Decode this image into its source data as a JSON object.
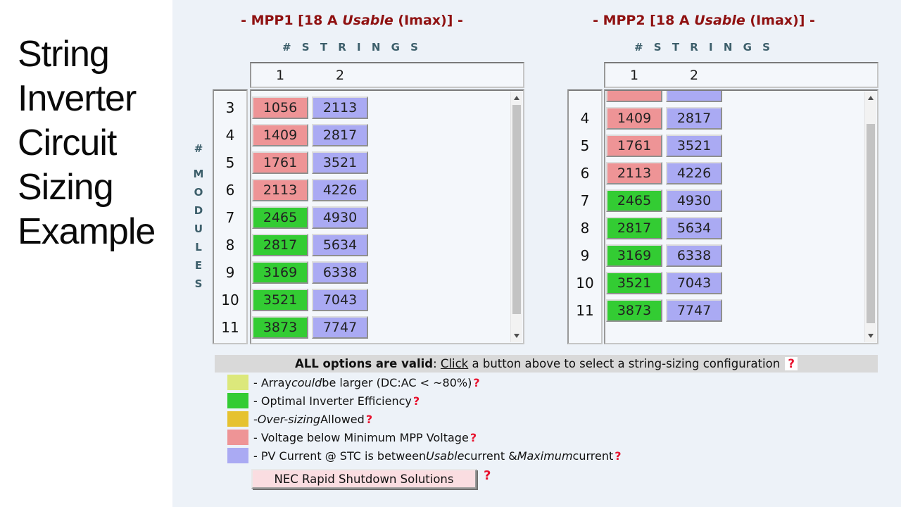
{
  "slide": {
    "title_lines": [
      "String",
      "Inverter",
      "Circuit",
      "Sizing",
      "Example"
    ]
  },
  "colors": {
    "pink": "#ee9496",
    "purple": "#aaaaf3",
    "green": "#33cc33",
    "yellow_green": "#dce87b",
    "gold": "#e6c22f",
    "dark_red": "#8f1111",
    "teal": "#3d5f6b",
    "help_red": "#e8112d",
    "bar_gray": "#d9d9d9",
    "nec_pink": "#fadde1"
  },
  "modules_axis": {
    "hash": "#",
    "letters": [
      "M",
      "O",
      "D",
      "U",
      "L",
      "E",
      "S"
    ]
  },
  "mpp1": {
    "title": [
      {
        "t": "- MPP1 [18 A "
      },
      {
        "t": "Usable",
        "i": true
      },
      {
        "t": " (Imax)] -"
      }
    ],
    "strings_label": "#  S T R I N G S",
    "col_headers": [
      "1",
      "2"
    ],
    "scrolled": false,
    "rows": [
      {
        "modules": "3",
        "cells": [
          {
            "v": "1056",
            "c": "pink"
          },
          {
            "v": "2113",
            "c": "purple"
          }
        ]
      },
      {
        "modules": "4",
        "cells": [
          {
            "v": "1409",
            "c": "pink"
          },
          {
            "v": "2817",
            "c": "purple"
          }
        ]
      },
      {
        "modules": "5",
        "cells": [
          {
            "v": "1761",
            "c": "pink"
          },
          {
            "v": "3521",
            "c": "purple"
          }
        ]
      },
      {
        "modules": "6",
        "cells": [
          {
            "v": "2113",
            "c": "pink"
          },
          {
            "v": "4226",
            "c": "purple"
          }
        ]
      },
      {
        "modules": "7",
        "cells": [
          {
            "v": "2465",
            "c": "green"
          },
          {
            "v": "4930",
            "c": "purple"
          }
        ]
      },
      {
        "modules": "8",
        "cells": [
          {
            "v": "2817",
            "c": "green"
          },
          {
            "v": "5634",
            "c": "purple"
          }
        ]
      },
      {
        "modules": "9",
        "cells": [
          {
            "v": "3169",
            "c": "green"
          },
          {
            "v": "6338",
            "c": "purple"
          }
        ]
      },
      {
        "modules": "10",
        "cells": [
          {
            "v": "3521",
            "c": "green"
          },
          {
            "v": "7043",
            "c": "purple"
          }
        ]
      },
      {
        "modules": "11",
        "cells": [
          {
            "v": "3873",
            "c": "green"
          },
          {
            "v": "7747",
            "c": "purple"
          }
        ]
      }
    ]
  },
  "mpp2": {
    "title": [
      {
        "t": "- MPP2 [18 A "
      },
      {
        "t": "Usable",
        "i": true
      },
      {
        "t": " (Imax)] -"
      }
    ],
    "strings_label": "#  S T R I N G S",
    "col_headers": [
      "1",
      "2"
    ],
    "scrolled": true,
    "rows": [
      {
        "modules": "",
        "cells": [
          {
            "v": "",
            "c": "pink"
          },
          {
            "v": "",
            "c": "purple"
          }
        ]
      },
      {
        "modules": "4",
        "cells": [
          {
            "v": "1409",
            "c": "pink"
          },
          {
            "v": "2817",
            "c": "purple"
          }
        ]
      },
      {
        "modules": "5",
        "cells": [
          {
            "v": "1761",
            "c": "pink"
          },
          {
            "v": "3521",
            "c": "purple"
          }
        ]
      },
      {
        "modules": "6",
        "cells": [
          {
            "v": "2113",
            "c": "pink"
          },
          {
            "v": "4226",
            "c": "purple"
          }
        ]
      },
      {
        "modules": "7",
        "cells": [
          {
            "v": "2465",
            "c": "green"
          },
          {
            "v": "4930",
            "c": "purple"
          }
        ]
      },
      {
        "modules": "8",
        "cells": [
          {
            "v": "2817",
            "c": "green"
          },
          {
            "v": "5634",
            "c": "purple"
          }
        ]
      },
      {
        "modules": "9",
        "cells": [
          {
            "v": "3169",
            "c": "green"
          },
          {
            "v": "6338",
            "c": "purple"
          }
        ]
      },
      {
        "modules": "10",
        "cells": [
          {
            "v": "3521",
            "c": "green"
          },
          {
            "v": "7043",
            "c": "purple"
          }
        ]
      },
      {
        "modules": "11",
        "cells": [
          {
            "v": "3873",
            "c": "green"
          },
          {
            "v": "7747",
            "c": "purple"
          }
        ]
      }
    ]
  },
  "status_bar": {
    "segments": [
      {
        "t": "ALL options are valid",
        "b": true
      },
      {
        "t": ": "
      },
      {
        "t": "Click",
        "u": true
      },
      {
        "t": " a button above to select a string-sizing configuration "
      },
      {
        "t": "?",
        "help": true,
        "box": true
      }
    ]
  },
  "legend": {
    "items": [
      {
        "color": "yellow_green",
        "segments": [
          {
            "t": "- Array "
          },
          {
            "t": "could",
            "i": true
          },
          {
            "t": " be larger (DC:AC < ~80%) "
          },
          {
            "t": "?",
            "help": true
          }
        ]
      },
      {
        "color": "green",
        "segments": [
          {
            "t": "- Optimal Inverter Efficiency "
          },
          {
            "t": "?",
            "help": true
          }
        ]
      },
      {
        "color": "gold",
        "segments": [
          {
            "t": "- "
          },
          {
            "t": "Over-sizing",
            "i": true
          },
          {
            "t": " Allowed "
          },
          {
            "t": "?",
            "help": true
          }
        ]
      },
      {
        "color": "pink",
        "segments": [
          {
            "t": "- Voltage below Minimum MPP Voltage "
          },
          {
            "t": "?",
            "help": true
          }
        ]
      },
      {
        "color": "purple",
        "segments": [
          {
            "t": "- PV Current @ STC is between "
          },
          {
            "t": "Usable",
            "i": true
          },
          {
            "t": " current & "
          },
          {
            "t": "Maximum",
            "i": true
          },
          {
            "t": " current "
          },
          {
            "t": "?",
            "help": true
          }
        ]
      }
    ]
  },
  "nec": {
    "label": "NEC Rapid Shutdown Solutions",
    "help": "?"
  }
}
